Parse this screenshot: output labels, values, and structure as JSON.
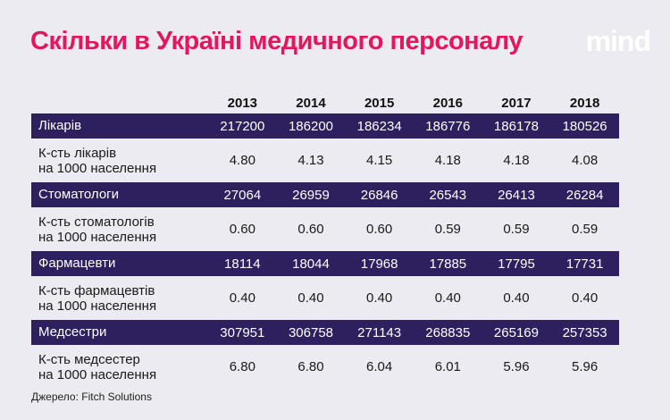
{
  "title": "Скільки в Україні медичного персоналу",
  "logo": "mind",
  "source": "Джерело: Fitch Solutions",
  "colors": {
    "title": "#e5155f",
    "band": "#2e1f5e",
    "background": "#ebebf1"
  },
  "chart_data": {
    "type": "table",
    "columns": [
      "2013",
      "2014",
      "2015",
      "2016",
      "2017",
      "2018"
    ],
    "rows": [
      {
        "kind": "dark",
        "label_lines": [
          "Лікарів"
        ],
        "values": [
          "217200",
          "186200",
          "186234",
          "186776",
          "186178",
          "180526"
        ]
      },
      {
        "kind": "light",
        "label_lines": [
          "К-сть лікарів",
          "на 1000 населення"
        ],
        "values": [
          "4.80",
          "4.13",
          "4.15",
          "4.18",
          "4.18",
          "4.08"
        ]
      },
      {
        "kind": "dark",
        "label_lines": [
          "Стоматологи"
        ],
        "values": [
          "27064",
          "26959",
          "26846",
          "26543",
          "26413",
          "26284"
        ]
      },
      {
        "kind": "light",
        "label_lines": [
          "К-сть стоматологів",
          "на 1000 населення"
        ],
        "values": [
          "0.60",
          "0.60",
          "0.60",
          "0.59",
          "0.59",
          "0.59"
        ]
      },
      {
        "kind": "dark",
        "label_lines": [
          "Фармацевти"
        ],
        "values": [
          "18114",
          "18044",
          "17968",
          "17885",
          "17795",
          "17731"
        ]
      },
      {
        "kind": "light",
        "label_lines": [
          "К-сть фармацевтів",
          "на 1000 населення"
        ],
        "values": [
          "0.40",
          "0.40",
          "0.40",
          "0.40",
          "0.40",
          "0.40"
        ]
      },
      {
        "kind": "dark",
        "label_lines": [
          "Медсестри"
        ],
        "values": [
          "307951",
          "306758",
          "271143",
          "268835",
          "265169",
          "257353"
        ]
      },
      {
        "kind": "light",
        "label_lines": [
          "К-сть медсестер",
          "на 1000 населення"
        ],
        "values": [
          "6.80",
          "6.80",
          "6.04",
          "6.01",
          "5.96",
          "5.96"
        ]
      }
    ]
  }
}
